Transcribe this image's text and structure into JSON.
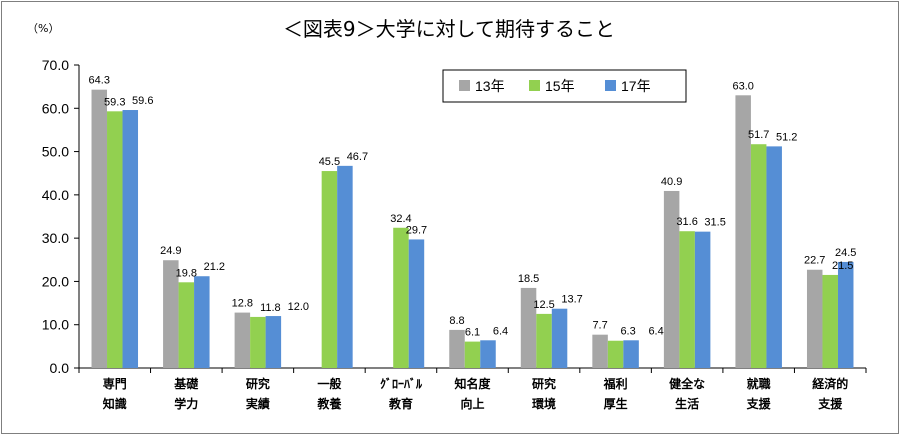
{
  "chart_data": {
    "type": "bar",
    "title": "＜図表9＞大学に対して期待すること",
    "unit_label": "（%）",
    "categories": [
      [
        "専門",
        "知識"
      ],
      [
        "基礎",
        "学力"
      ],
      [
        "研究",
        "実績"
      ],
      [
        "一般",
        "教養"
      ],
      [
        "ｸﾞﾛｰﾊﾞﾙ",
        "教育"
      ],
      [
        "知名度",
        "向上"
      ],
      [
        "研究",
        "環境"
      ],
      [
        "福利",
        "厚生"
      ],
      [
        "健全な",
        "生活"
      ],
      [
        "就職",
        "支援"
      ],
      [
        "経済的",
        "支援"
      ]
    ],
    "series": [
      {
        "name": "13年",
        "color": "#a6a6a6",
        "values": [
          64.3,
          24.9,
          12.8,
          null,
          null,
          8.8,
          18.5,
          7.7,
          40.9,
          63.0,
          22.7
        ]
      },
      {
        "name": "15年",
        "color": "#92d050",
        "values": [
          59.3,
          19.8,
          11.8,
          45.5,
          32.4,
          6.1,
          12.5,
          6.3,
          31.6,
          51.7,
          21.5
        ]
      },
      {
        "name": "17年",
        "color": "#558ed5",
        "values": [
          59.6,
          21.2,
          12.0,
          46.7,
          29.7,
          6.4,
          13.7,
          6.4,
          31.5,
          51.2,
          24.5
        ]
      }
    ],
    "ylim": [
      0,
      70
    ],
    "yticks": [
      "0.0",
      "10.0",
      "20.0",
      "30.0",
      "40.0",
      "50.0",
      "60.0",
      "70.0"
    ],
    "legend_position": "top-right",
    "grid": false
  }
}
